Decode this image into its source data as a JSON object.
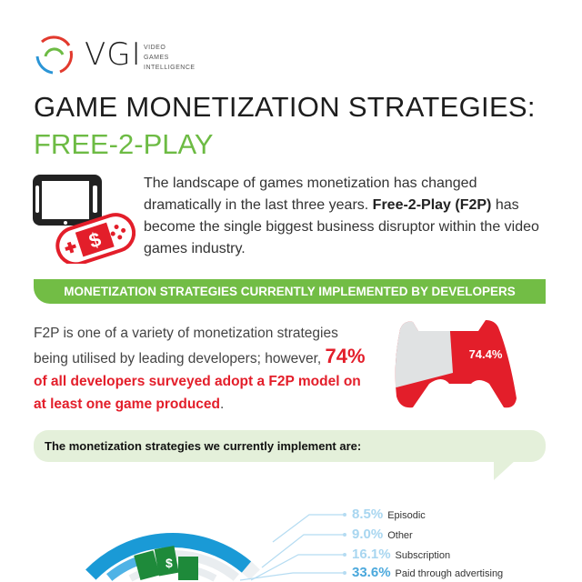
{
  "logo": {
    "name": "VGI",
    "tagline": [
      "VIDEO",
      "GAMES",
      "INTELLIGENCE"
    ]
  },
  "header": {
    "title": "GAME MONETIZATION STRATEGIES:",
    "subtitle": "FREE-2-PLAY"
  },
  "intro": {
    "text_before": "The landscape of games monetization has changed dramatically in the last three years. ",
    "bold": "Free-2-Play (F2P)",
    "text_after": " has become the single biggest business disruptor within the video games industry."
  },
  "section_banner": "MONETIZATION STRATEGIES CURRENTLY IMPLEMENTED BY DEVELOPERS",
  "f2p_stat": {
    "text": "F2P is one of a variety of monetization strategies being utilised by leading developers; however, ",
    "highlight": "74%",
    "red_text": "of all developers surveyed adopt a F2P model on at least one game produced",
    "end": ".",
    "controller_value": "74.4%",
    "controller_fill_percent": 74.4
  },
  "question": "The monetization strategies we currently implement are:",
  "colors": {
    "green": "#72bd45",
    "red": "#e31e2a",
    "blue": "#1a9ad6",
    "light_blue": "#a8d6f0"
  },
  "chart_data": {
    "type": "radial-bar",
    "categories": [
      "Episodic",
      "Other",
      "Subscription",
      "Paid through advertising"
    ],
    "values": [
      8.5,
      9.0,
      16.1,
      33.6
    ],
    "labels": [
      "8.5%",
      "9.0%",
      "16.1%",
      "33.6%"
    ]
  }
}
